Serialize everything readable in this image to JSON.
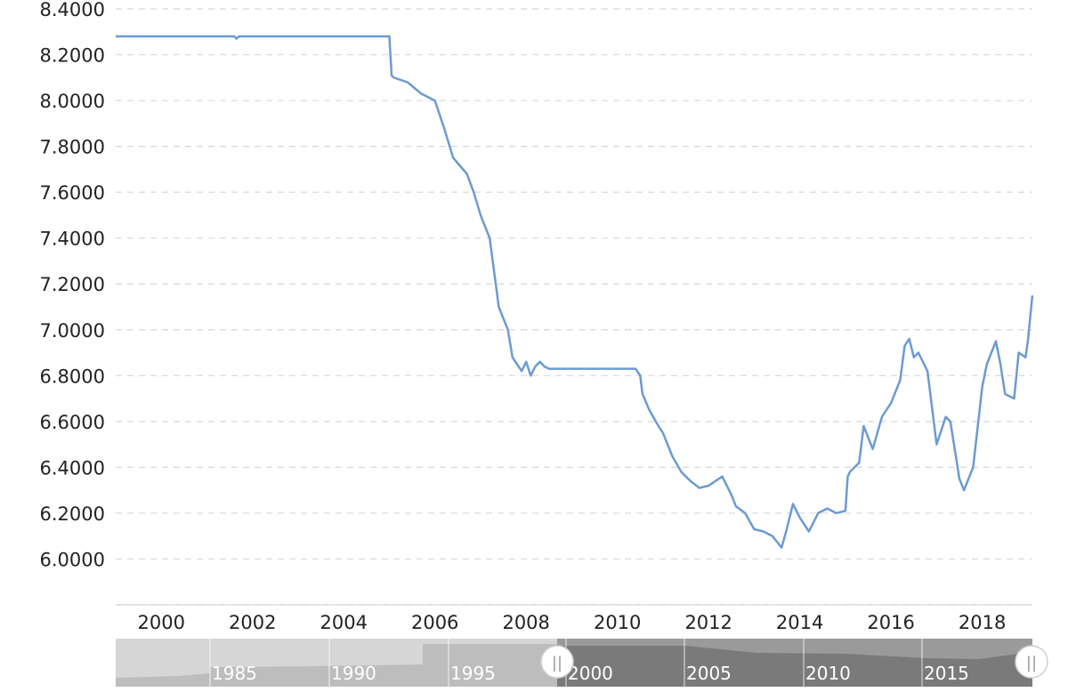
{
  "chart_data": {
    "type": "line",
    "title": "",
    "xlabel": "",
    "ylabel": "",
    "ylim": [
      5.8,
      8.4
    ],
    "xlim": [
      1999.0,
      2019.1
    ],
    "y_ticks": [
      "6.0000",
      "6.2000",
      "6.4000",
      "6.6000",
      "6.8000",
      "7.0000",
      "7.2000",
      "7.4000",
      "7.6000",
      "7.8000",
      "8.0000",
      "8.2000",
      "8.4000"
    ],
    "x_ticks": [
      "2000",
      "2002",
      "2004",
      "2006",
      "2008",
      "2010",
      "2012",
      "2014",
      "2016",
      "2018"
    ],
    "grid": true,
    "line_color": "#6b9bd1",
    "series": [
      {
        "name": "",
        "x": [
          1999.0,
          2001.6,
          2001.65,
          2001.7,
          2005.0,
          2005.05,
          2005.1,
          2005.4,
          2005.7,
          2006.0,
          2006.2,
          2006.4,
          2006.7,
          2006.85,
          2007.0,
          2007.2,
          2007.3,
          2007.4,
          2007.6,
          2007.7,
          2007.9,
          2008.0,
          2008.1,
          2008.2,
          2008.3,
          2008.4,
          2008.5,
          2008.7,
          2009.0,
          2009.5,
          2010.0,
          2010.4,
          2010.5,
          2010.55,
          2010.7,
          2010.9,
          2011.0,
          2011.2,
          2011.4,
          2011.6,
          2011.8,
          2012.0,
          2012.3,
          2012.5,
          2012.6,
          2012.8,
          2013.0,
          2013.2,
          2013.4,
          2013.6,
          2013.7,
          2013.85,
          2014.0,
          2014.2,
          2014.4,
          2014.6,
          2014.8,
          2015.0,
          2015.05,
          2015.1,
          2015.3,
          2015.4,
          2015.6,
          2015.8,
          2016.0,
          2016.2,
          2016.3,
          2016.4,
          2016.5,
          2016.6,
          2016.8,
          2017.0,
          2017.2,
          2017.3,
          2017.5,
          2017.6,
          2017.8,
          2018.0,
          2018.1,
          2018.2,
          2018.3,
          2018.4,
          2018.5,
          2018.7,
          2018.8,
          2018.95,
          2019.0,
          2019.05,
          2019.1
        ],
        "values": [
          8.28,
          8.28,
          8.27,
          8.28,
          8.28,
          8.11,
          8.1,
          8.08,
          8.03,
          8.0,
          7.88,
          7.75,
          7.68,
          7.6,
          7.5,
          7.4,
          7.25,
          7.1,
          7.0,
          6.88,
          6.82,
          6.86,
          6.8,
          6.84,
          6.86,
          6.84,
          6.83,
          6.83,
          6.83,
          6.83,
          6.83,
          6.83,
          6.8,
          6.72,
          6.65,
          6.58,
          6.55,
          6.45,
          6.38,
          6.34,
          6.31,
          6.32,
          6.36,
          6.28,
          6.23,
          6.2,
          6.13,
          6.12,
          6.1,
          6.05,
          6.12,
          6.24,
          6.18,
          6.12,
          6.2,
          6.22,
          6.2,
          6.21,
          6.36,
          6.38,
          6.42,
          6.58,
          6.48,
          6.62,
          6.68,
          6.78,
          6.93,
          6.96,
          6.88,
          6.9,
          6.82,
          6.5,
          6.62,
          6.6,
          6.35,
          6.3,
          6.4,
          6.75,
          6.85,
          6.9,
          6.95,
          6.85,
          6.72,
          6.7,
          6.9,
          6.88,
          6.95,
          7.05,
          7.15
        ]
      }
    ],
    "navigator": {
      "labels": [
        "1985",
        "1990",
        "1995",
        "2000",
        "2005",
        "2010",
        "2015"
      ],
      "handle_glyph": "||"
    }
  }
}
